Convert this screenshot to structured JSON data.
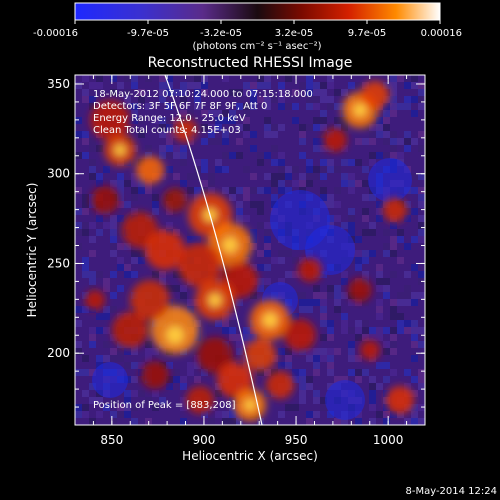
{
  "colorbar": {
    "tick_labels": [
      "-0.00016",
      "-9.7e-05",
      "-3.2e-05",
      "3.2e-05",
      "9.7e-05",
      "0.00016"
    ],
    "unit_label": "(photons cm⁻² s⁻¹ asec⁻²)"
  },
  "image": {
    "title": "Reconstructed RHESSI Image",
    "annotation_lines": [
      "18-May-2012 07:10:24.000 to 07:15:18.000",
      "Detectors: 3F 5F 6F 7F 8F 9F, Att 0",
      "Energy Range: 12.0 - 25.0 keV",
      "Clean    Total counts: 4.15E+03"
    ],
    "peak_label": "Position of Peak = [883,208]",
    "xlabel": "Heliocentric X (arcsec)",
    "ylabel": "Heliocentric Y (arcsec)",
    "x_ticks": [
      "850",
      "900",
      "950",
      "1000"
    ],
    "y_ticks": [
      "200",
      "250",
      "300",
      "350"
    ],
    "x_range": [
      830,
      1020
    ],
    "y_range": [
      160,
      355
    ]
  },
  "footer_date": "8-May-2014 12:24"
}
